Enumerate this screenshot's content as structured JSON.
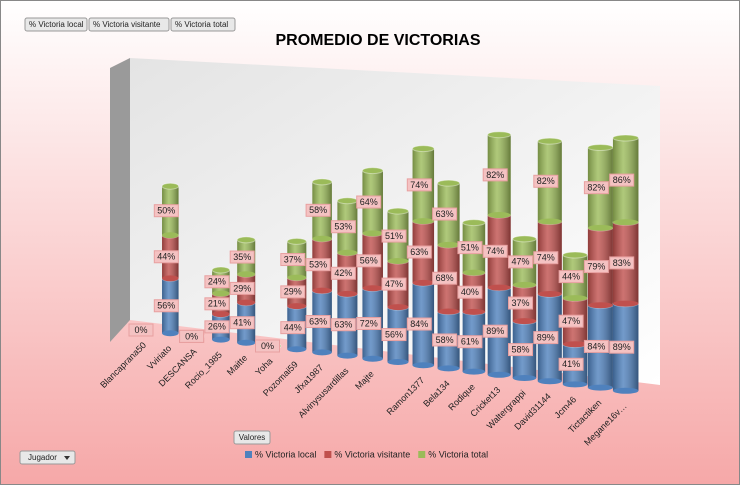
{
  "chart_data": {
    "type": "bar3d",
    "title": "PROMEDIO DE VICTORIAS",
    "filter_buttons": [
      "% Victoria local",
      "% Victoria visitante",
      "% Victoria total"
    ],
    "values_button": "Valores",
    "row_button": "Jugador",
    "categories": [
      "Blancaprana50",
      "Vviriato",
      "DESCANSA",
      "Rocio_1985",
      "Maitte",
      "Yoha",
      "Pozomai59",
      "Jfxa1987",
      "Alvinysusardillas",
      "Majte",
      null,
      "Ramon1377",
      "Bela134",
      "Rodique",
      "Cricket13",
      "Waltergrappi",
      "David31144",
      "Jcm46",
      "Tictactiken",
      "Megane16v…"
    ],
    "series": [
      {
        "name": "% Victoria local",
        "color": "#4f81bd",
        "values": [
          0,
          56,
          0,
          26,
          41,
          0,
          44,
          63,
          63,
          72,
          56,
          84,
          58,
          61,
          89,
          58,
          89,
          41,
          84,
          89
        ],
        "value_labels": [
          "0%",
          "56%",
          "0%",
          "26%",
          "41%",
          "0%",
          "44%",
          "63%",
          "63%",
          "72%",
          "56%",
          "84%",
          "58%",
          "61%",
          "89%",
          "58%",
          "89%",
          "41%",
          "84%",
          "89%"
        ]
      },
      {
        "name": "% Victoria visitante",
        "color": "#c0504d",
        "values": [
          0,
          44,
          0,
          21,
          29,
          0,
          29,
          53,
          42,
          56,
          47,
          63,
          68,
          40,
          74,
          37,
          74,
          47,
          79,
          83
        ],
        "value_labels": [
          "0%",
          "44%",
          "0%",
          "21%",
          "29%",
          "0%",
          "29%",
          "53%",
          "42%",
          "56%",
          "47%",
          "63%",
          "68%",
          "40%",
          "74%",
          "37%",
          "74%",
          "47%",
          "79%",
          "83%"
        ]
      },
      {
        "name": "% Victoria total",
        "color": "#9bbb59",
        "values": [
          0,
          50,
          0,
          24,
          35,
          0,
          37,
          58,
          53,
          64,
          51,
          74,
          63,
          51,
          82,
          47,
          82,
          44,
          82,
          86
        ],
        "value_labels": [
          "0%",
          "50%",
          "0%",
          "24%",
          "35%",
          "0%",
          "37%",
          "58%",
          "53%",
          "64%",
          "51%",
          "74%",
          "63%",
          "51%",
          "82%",
          "47%",
          "82%",
          "44%",
          "82%",
          "86%"
        ]
      }
    ]
  }
}
